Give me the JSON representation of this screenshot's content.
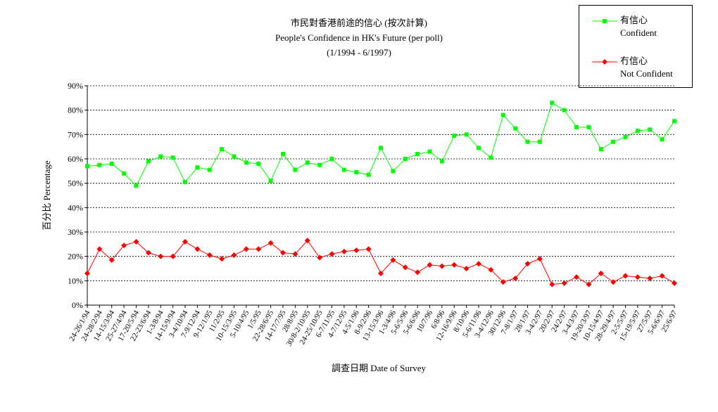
{
  "chart_data": {
    "type": "line",
    "title": "市民對香港前途的信心 (按次計算)",
    "subtitle": "People's Confidence in HK's Future (per poll)",
    "period": "(1/1994 - 6/1997)",
    "xlabel": "調查日期 Date of Survey",
    "ylabel": "百分比 Percentage",
    "ylim": [
      0,
      90
    ],
    "yticks": [
      "0%",
      "10%",
      "20%",
      "30%",
      "40%",
      "50%",
      "60%",
      "70%",
      "80%",
      "90%"
    ],
    "grid": "horizontal dotted",
    "legend_position": "top-right",
    "categories": [
      "24-26/1/94",
      "24-28/2/94",
      "14-15/3/94",
      "25-27/4/94",
      "17-20/5/94",
      "22-23/6/94",
      "1-3/8/94",
      "14-15/9/94",
      "3-4/10/94",
      "7-9/12/94",
      "9-12/1/95",
      "11/2/95",
      "10-15/3/95",
      "5-10/4/95",
      "1/5/95",
      "22-28/6/95",
      "14-17/7/95",
      "28/8/95",
      "30/8-2/10/95",
      "24-25/10/95",
      "6-7/11/95",
      "4-7/12/95",
      "4-5/1/96",
      "8-9/2/96",
      "13-15/3/96",
      "1-3/4/96",
      "5-6/5/96",
      "5-6/6/96",
      "10/7/96",
      "6/8/96",
      "12-16/9/96",
      "8/10/96",
      "5-6/11/96",
      "3-4/12/96",
      "30/12/96",
      "7-8/1/97",
      "28/1/97",
      "3-4/2/97",
      "20/2/97",
      "24/2/97",
      "3-4/3/97",
      "19-20/3/97",
      "10-15/4/97",
      "28-29/4/97",
      "2-5/5/97",
      "15-19/5/97",
      "27/5/97",
      "5-6/6/97",
      "25/6/97"
    ],
    "series": [
      {
        "name": "有信心",
        "name_en": "Confident",
        "color": "#00ff00",
        "marker": "square",
        "values": [
          57,
          57.5,
          58,
          54,
          49,
          59,
          61,
          60.5,
          50.5,
          56.5,
          55.5,
          64,
          61,
          58.5,
          58,
          51,
          62,
          55.5,
          58.5,
          57.5,
          60,
          55.5,
          54.5,
          53.5,
          64.5,
          55,
          60,
          62,
          63,
          59,
          69.5,
          70,
          64.5,
          60.5,
          78,
          72.5,
          67,
          67,
          83,
          80,
          73,
          73,
          64,
          67,
          69,
          71.5,
          72,
          68,
          75.5
        ]
      },
      {
        "name": "冇信心",
        "name_en": "Not Confident",
        "color": "#ff0000",
        "marker": "diamond",
        "values": [
          13,
          23,
          18.5,
          24.5,
          26,
          21.5,
          20,
          20,
          26,
          23,
          20.5,
          19,
          20.5,
          23,
          23,
          25.5,
          21.5,
          21,
          26.5,
          19.5,
          21,
          22,
          22.5,
          23,
          13,
          18.5,
          15.5,
          13.5,
          16.5,
          16,
          16.5,
          15,
          17,
          14.5,
          9.5,
          11,
          17,
          19,
          8.5,
          9,
          11.5,
          8.5,
          13,
          9.5,
          12,
          11.5,
          11,
          12,
          9
        ]
      }
    ]
  }
}
